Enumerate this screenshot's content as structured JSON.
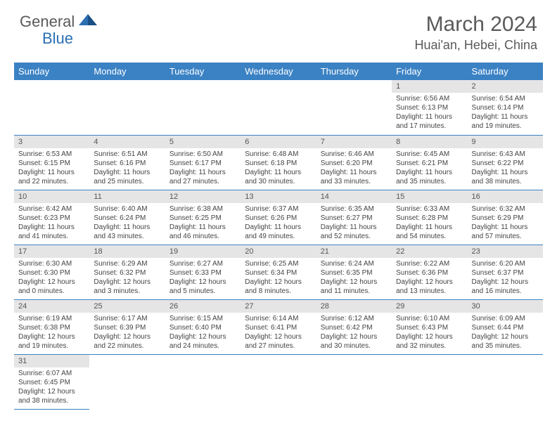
{
  "brand": {
    "part1": "General",
    "part2": "Blue"
  },
  "title": "March 2024",
  "location": "Huai'an, Hebei, China",
  "colors": {
    "header_bg": "#3b82c4",
    "header_text": "#ffffff",
    "daynum_bg": "#e5e5e5",
    "row_divider": "#3b82c4",
    "logo_gray": "#5a5a5a",
    "logo_blue": "#2b6fb3"
  },
  "typography": {
    "title_size_pt": 22,
    "location_size_pt": 14,
    "th_size_pt": 10,
    "cell_size_pt": 8
  },
  "weekdays": [
    "Sunday",
    "Monday",
    "Tuesday",
    "Wednesday",
    "Thursday",
    "Friday",
    "Saturday"
  ],
  "grid": {
    "rows": 6,
    "cols": 7,
    "first_weekday_index": 5,
    "days_in_month": 31
  },
  "days": {
    "1": {
      "sunrise": "6:56 AM",
      "sunset": "6:13 PM",
      "daylight": "11 hours and 17 minutes."
    },
    "2": {
      "sunrise": "6:54 AM",
      "sunset": "6:14 PM",
      "daylight": "11 hours and 19 minutes."
    },
    "3": {
      "sunrise": "6:53 AM",
      "sunset": "6:15 PM",
      "daylight": "11 hours and 22 minutes."
    },
    "4": {
      "sunrise": "6:51 AM",
      "sunset": "6:16 PM",
      "daylight": "11 hours and 25 minutes."
    },
    "5": {
      "sunrise": "6:50 AM",
      "sunset": "6:17 PM",
      "daylight": "11 hours and 27 minutes."
    },
    "6": {
      "sunrise": "6:48 AM",
      "sunset": "6:18 PM",
      "daylight": "11 hours and 30 minutes."
    },
    "7": {
      "sunrise": "6:46 AM",
      "sunset": "6:20 PM",
      "daylight": "11 hours and 33 minutes."
    },
    "8": {
      "sunrise": "6:45 AM",
      "sunset": "6:21 PM",
      "daylight": "11 hours and 35 minutes."
    },
    "9": {
      "sunrise": "6:43 AM",
      "sunset": "6:22 PM",
      "daylight": "11 hours and 38 minutes."
    },
    "10": {
      "sunrise": "6:42 AM",
      "sunset": "6:23 PM",
      "daylight": "11 hours and 41 minutes."
    },
    "11": {
      "sunrise": "6:40 AM",
      "sunset": "6:24 PM",
      "daylight": "11 hours and 43 minutes."
    },
    "12": {
      "sunrise": "6:38 AM",
      "sunset": "6:25 PM",
      "daylight": "11 hours and 46 minutes."
    },
    "13": {
      "sunrise": "6:37 AM",
      "sunset": "6:26 PM",
      "daylight": "11 hours and 49 minutes."
    },
    "14": {
      "sunrise": "6:35 AM",
      "sunset": "6:27 PM",
      "daylight": "11 hours and 52 minutes."
    },
    "15": {
      "sunrise": "6:33 AM",
      "sunset": "6:28 PM",
      "daylight": "11 hours and 54 minutes."
    },
    "16": {
      "sunrise": "6:32 AM",
      "sunset": "6:29 PM",
      "daylight": "11 hours and 57 minutes."
    },
    "17": {
      "sunrise": "6:30 AM",
      "sunset": "6:30 PM",
      "daylight": "12 hours and 0 minutes."
    },
    "18": {
      "sunrise": "6:29 AM",
      "sunset": "6:32 PM",
      "daylight": "12 hours and 3 minutes."
    },
    "19": {
      "sunrise": "6:27 AM",
      "sunset": "6:33 PM",
      "daylight": "12 hours and 5 minutes."
    },
    "20": {
      "sunrise": "6:25 AM",
      "sunset": "6:34 PM",
      "daylight": "12 hours and 8 minutes."
    },
    "21": {
      "sunrise": "6:24 AM",
      "sunset": "6:35 PM",
      "daylight": "12 hours and 11 minutes."
    },
    "22": {
      "sunrise": "6:22 AM",
      "sunset": "6:36 PM",
      "daylight": "12 hours and 13 minutes."
    },
    "23": {
      "sunrise": "6:20 AM",
      "sunset": "6:37 PM",
      "daylight": "12 hours and 16 minutes."
    },
    "24": {
      "sunrise": "6:19 AM",
      "sunset": "6:38 PM",
      "daylight": "12 hours and 19 minutes."
    },
    "25": {
      "sunrise": "6:17 AM",
      "sunset": "6:39 PM",
      "daylight": "12 hours and 22 minutes."
    },
    "26": {
      "sunrise": "6:15 AM",
      "sunset": "6:40 PM",
      "daylight": "12 hours and 24 minutes."
    },
    "27": {
      "sunrise": "6:14 AM",
      "sunset": "6:41 PM",
      "daylight": "12 hours and 27 minutes."
    },
    "28": {
      "sunrise": "6:12 AM",
      "sunset": "6:42 PM",
      "daylight": "12 hours and 30 minutes."
    },
    "29": {
      "sunrise": "6:10 AM",
      "sunset": "6:43 PM",
      "daylight": "12 hours and 32 minutes."
    },
    "30": {
      "sunrise": "6:09 AM",
      "sunset": "6:44 PM",
      "daylight": "12 hours and 35 minutes."
    },
    "31": {
      "sunrise": "6:07 AM",
      "sunset": "6:45 PM",
      "daylight": "12 hours and 38 minutes."
    }
  },
  "labels": {
    "sunrise": "Sunrise:",
    "sunset": "Sunset:",
    "daylight": "Daylight:"
  }
}
